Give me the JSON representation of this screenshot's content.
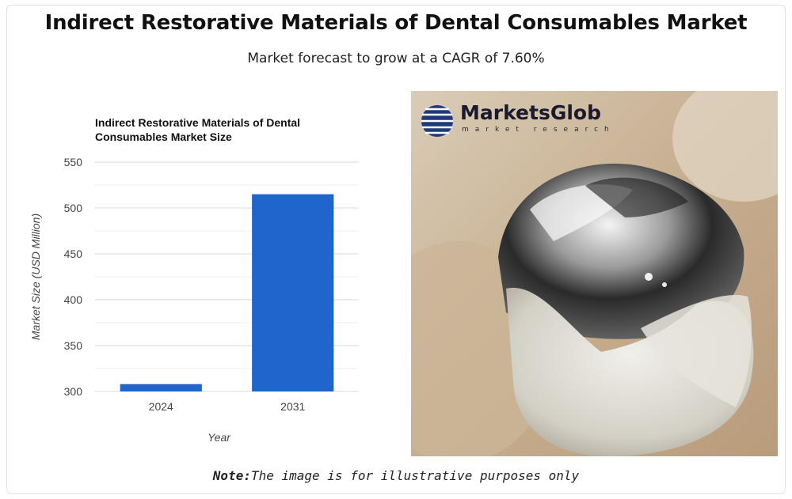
{
  "page": {
    "title": "Indirect Restorative Materials of Dental Consumables Market",
    "subtitle": "Market forecast to grow at a CAGR of 7.60%",
    "note_label": "Note:",
    "note_text": "The image is for illustrative purposes only"
  },
  "logo": {
    "name": "MarketsGlob",
    "tagline": "market research"
  },
  "colors": {
    "bar": "#1f65cc",
    "grid": "#d9d9d9",
    "axis_text": "#444444"
  },
  "chart_data": {
    "type": "bar",
    "title": "Indirect Restorative Materials of Dental Consumables Market Size",
    "title_lines": [
      "Indirect Restorative Materials of Dental",
      "Consumables Market Size"
    ],
    "categories": [
      "2024",
      "2031"
    ],
    "values": [
      308,
      515
    ],
    "xlabel": "Year",
    "ylabel": "Market Size (USD Million)",
    "ylim": [
      300,
      550
    ],
    "yticks": [
      300,
      350,
      400,
      450,
      500,
      550
    ],
    "grid": true,
    "legend": "none"
  }
}
